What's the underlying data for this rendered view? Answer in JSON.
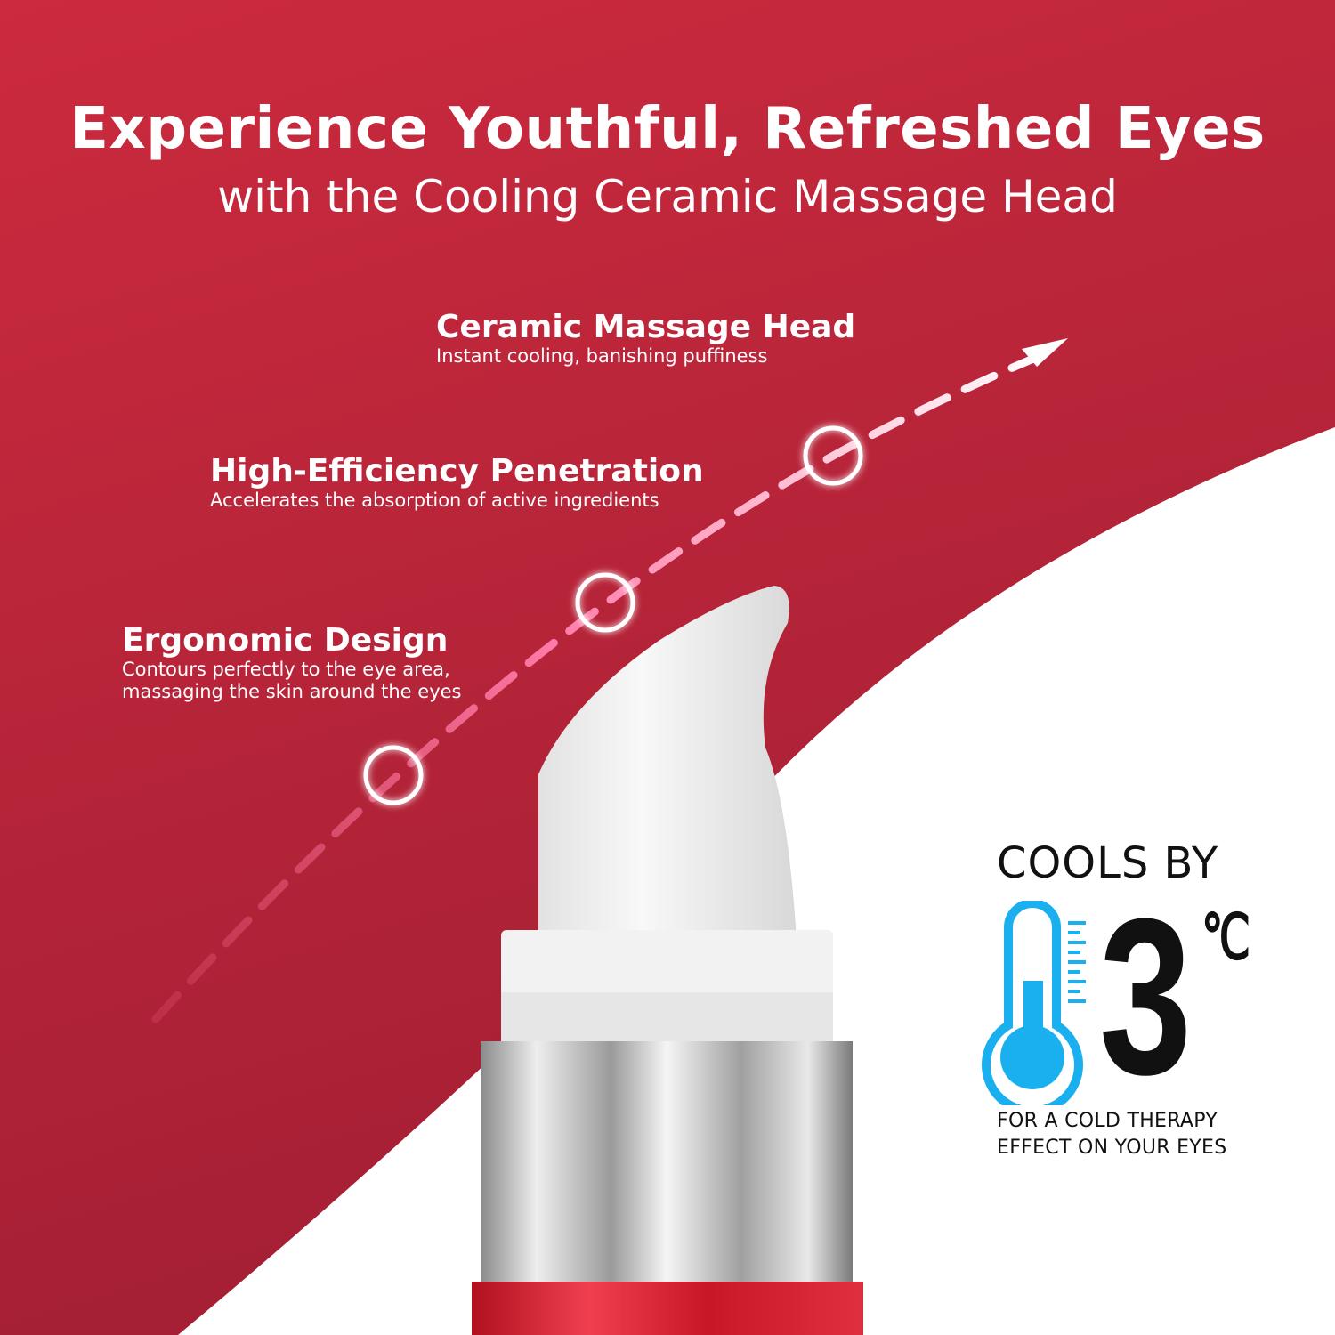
{
  "colors": {
    "red_top": "#cc2a3e",
    "red_bottom": "#a71f35",
    "white": "#ffffff",
    "thermometer": "#1ab0ef",
    "text_dark": "#111111"
  },
  "header": {
    "title": "Experience Youthful, Refreshed Eyes",
    "subtitle": "with the Cooling Ceramic Massage Head"
  },
  "features": [
    {
      "title": "Ceramic Massage Head",
      "desc": "Instant cooling, banishing puffiness"
    },
    {
      "title": "High-Efficiency Penetration",
      "desc": "Accelerates the absorption of active ingredients"
    },
    {
      "title": "Ergonomic Design",
      "desc_line1": "Contours perfectly to the eye area,",
      "desc_line2": "massaging the skin around the eyes"
    }
  ],
  "cooling": {
    "heading": "COOLS BY",
    "value": "3",
    "unit": "℃",
    "footer_line1": "FOR A COLD THERAPY",
    "footer_line2": "EFFECT ON YOUR EYES",
    "icon": "thermometer-icon"
  }
}
